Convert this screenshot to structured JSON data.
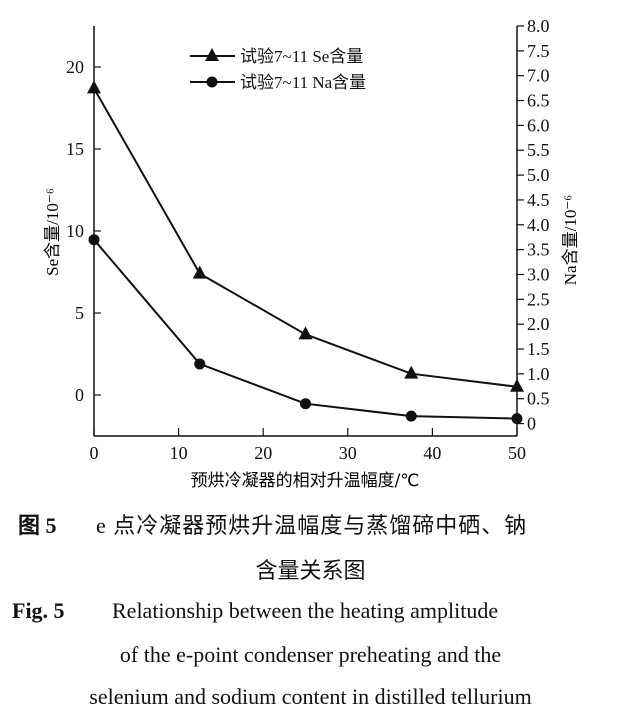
{
  "chart_data": {
    "type": "line",
    "x": [
      0,
      12.5,
      25,
      37.5,
      50
    ],
    "xlabel": "预烘冷凝器的相对升温幅度/℃",
    "xticks": [
      0,
      10,
      20,
      30,
      40,
      50
    ],
    "xlim": [
      0,
      50
    ],
    "ylabel_left": "Se含量/10⁻⁶",
    "ylabel_right": "Na含量/10⁻⁶",
    "ylim_left": [
      -2.5,
      22.5
    ],
    "ylim_right": [
      -0.25,
      8.0
    ],
    "yticks_left": [
      0,
      5,
      10,
      15,
      20
    ],
    "yticks_right": [
      "0",
      "0.5",
      "1.0",
      "1.5",
      "2.0",
      "2.5",
      "3.0",
      "3.5",
      "4.0",
      "4.5",
      "5.0",
      "5.5",
      "6.0",
      "6.5",
      "7.0",
      "7.5",
      "8.0"
    ],
    "grid": false,
    "legend_position": "top-center",
    "series": [
      {
        "name": "试验7~11 Se含量",
        "axis": "left",
        "marker": "triangle",
        "values": [
          18.7,
          7.4,
          3.7,
          1.3,
          0.5
        ]
      },
      {
        "name": "试验7~11 Na含量",
        "axis": "right",
        "marker": "circle",
        "values": [
          3.7,
          1.2,
          0.4,
          0.15,
          0.1
        ]
      }
    ]
  },
  "caption": {
    "cn_label": "图 5",
    "cn_line1": "e 点冷凝器预烘升温幅度与蒸馏碲中硒、钠",
    "cn_line2": "含量关系图",
    "en_label": "Fig. 5",
    "en_line1": "Relationship between the heating amplitude",
    "en_line2": "of the e-point condenser preheating and the",
    "en_line3": "selenium and sodium content in distilled tellurium"
  }
}
